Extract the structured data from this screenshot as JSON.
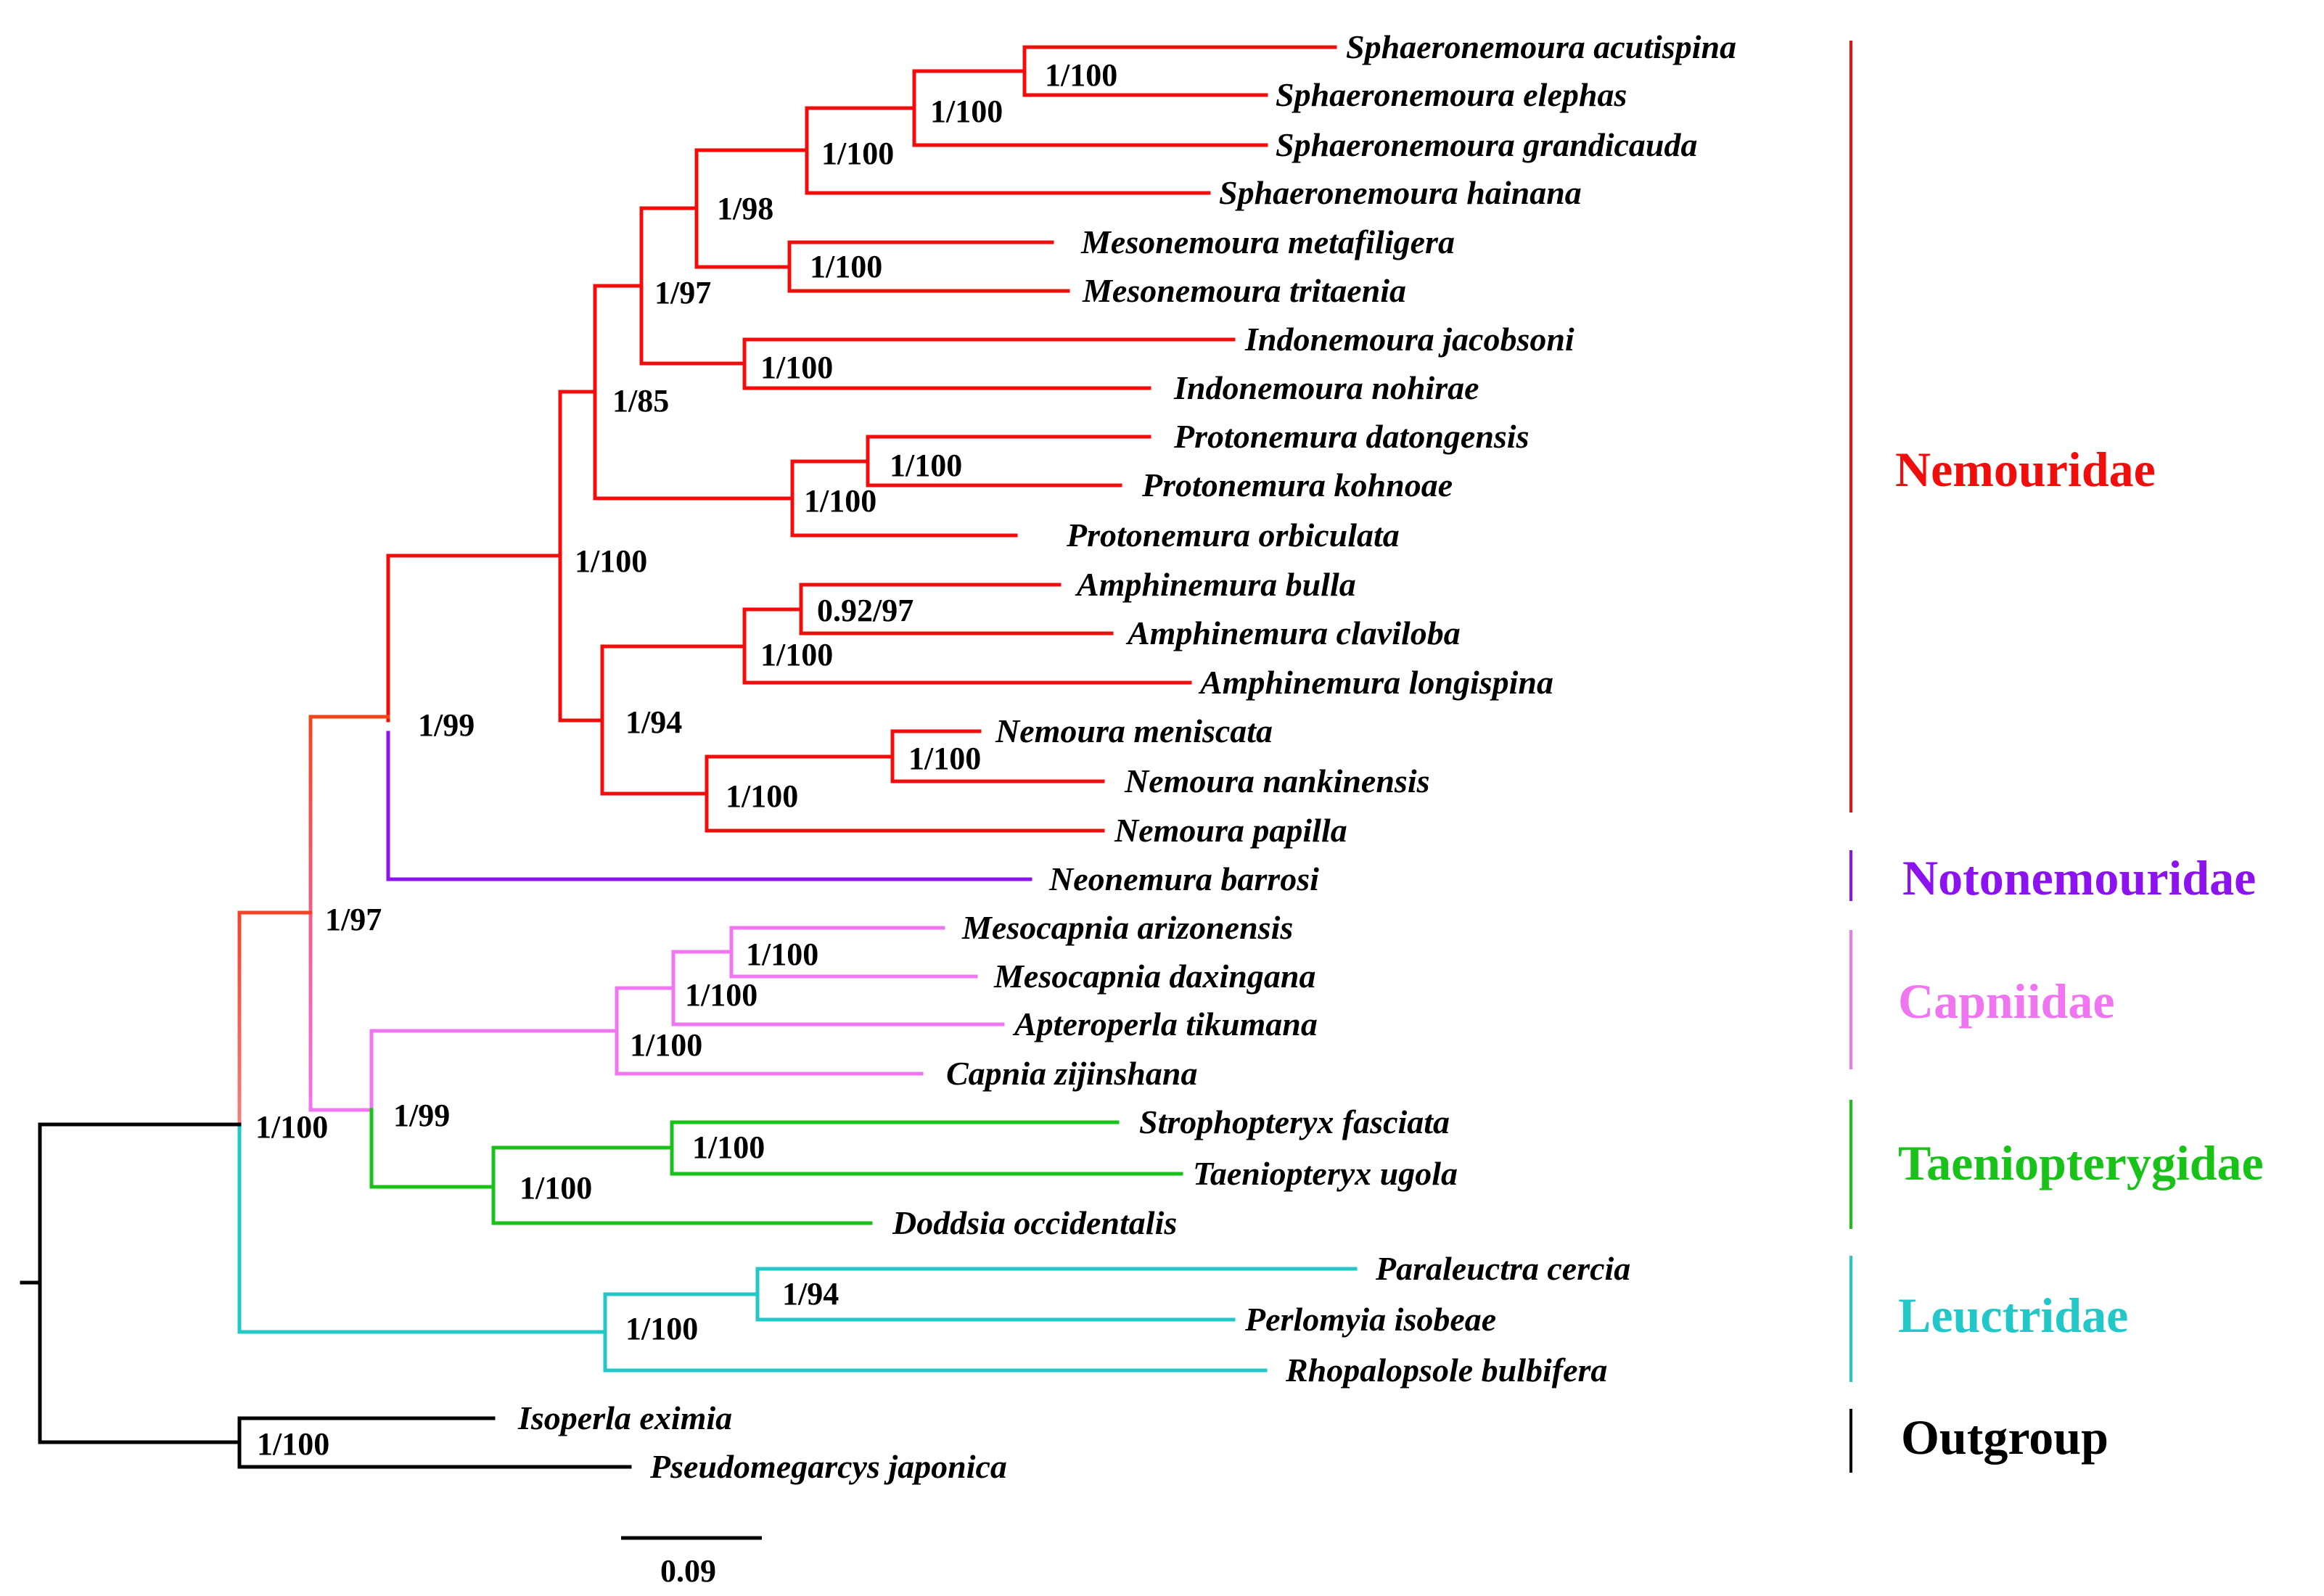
{
  "taxa": {
    "s_acutispina": "Sphaeronemoura acutispina",
    "s_elephas": "Sphaeronemoura elephas",
    "s_grandicauda": "Sphaeronemoura grandicauda",
    "s_hainana": "Sphaeronemoura hainana",
    "m_metafiligera": "Mesonemoura metafiligera",
    "m_tritaenia": "Mesonemoura tritaenia",
    "i_jacobsoni": "Indonemoura jacobsoni",
    "i_nohirae": "Indonemoura nohirae",
    "p_datongensis": "Protonemura datongensis",
    "p_kohnoae": "Protonemura kohnoae",
    "p_orbiculata": "Protonemura orbiculata",
    "a_bulla": "Amphinemura bulla",
    "a_claviloba": "Amphinemura claviloba",
    "a_longispina": "Amphinemura longispina",
    "n_meniscata": "Nemoura meniscata",
    "n_nankinensis": "Nemoura nankinensis",
    "n_papilla": "Nemoura papilla",
    "neonemura": "Neonemura barrosi",
    "m_arizonensis": "Mesocapnia arizonensis",
    "m_daxingana": "Mesocapnia daxingana",
    "a_tikumana": "Apteroperla tikumana",
    "c_zijinshana": "Capnia zijinshana",
    "s_fasciata": "Strophopteryx fasciata",
    "t_ugola": "Taeniopteryx ugola",
    "d_occidentalis": "Doddsia occidentalis",
    "p_cercia": "Paraleuctra cercia",
    "p_isobeae": "Perlomyia isobeae",
    "r_bulbifera": "Rhopalopsole bulbifera",
    "i_eximia": "Isoperla eximia",
    "p_japonica": "Pseudomegarcys japonica"
  },
  "support": {
    "sph_ae": "1/100",
    "sph_aeg": "1/100",
    "sph_all": "1/100",
    "sph_meso": "1/98",
    "meso": "1/100",
    "sph_meso_indo": "1/97",
    "indo": "1/100",
    "upper": "1/85",
    "proto_dk": "1/100",
    "proto": "1/100",
    "nemouridae": "1/100",
    "amph_bc": "0.92/97",
    "amph": "1/100",
    "amph_nem": "1/94",
    "nem_mn": "1/100",
    "nem": "1/100",
    "nemo_noto": "1/99",
    "ingroup_upper": "1/97",
    "capn_ma": "1/100",
    "capn_mad": "1/100",
    "capn": "1/100",
    "capn_taen": "1/99",
    "taen_st": "1/100",
    "taen": "1/100",
    "ingroup": "1/100",
    "leuc_pp": "1/94",
    "leuc": "1/100",
    "outgroup": "1/100"
  },
  "families": {
    "nemouridae": "Nemouridae",
    "notonemouridae": "Notonemouridae",
    "capniidae": "Capniidae",
    "taeniopterygidae": "Taeniopterygidae",
    "leuctridae": "Leuctridae",
    "outgroup": "Outgroup"
  },
  "scale_bar": {
    "label": "0.09",
    "value": 0.09
  },
  "colors": {
    "nemouridae": "#f20d0d",
    "notonemouridae": "#8c12f0",
    "capniidae": "#f075f0",
    "taeniopterygidae": "#19c219",
    "leuctridae": "#22c7c7",
    "outgroup": "#000000"
  }
}
